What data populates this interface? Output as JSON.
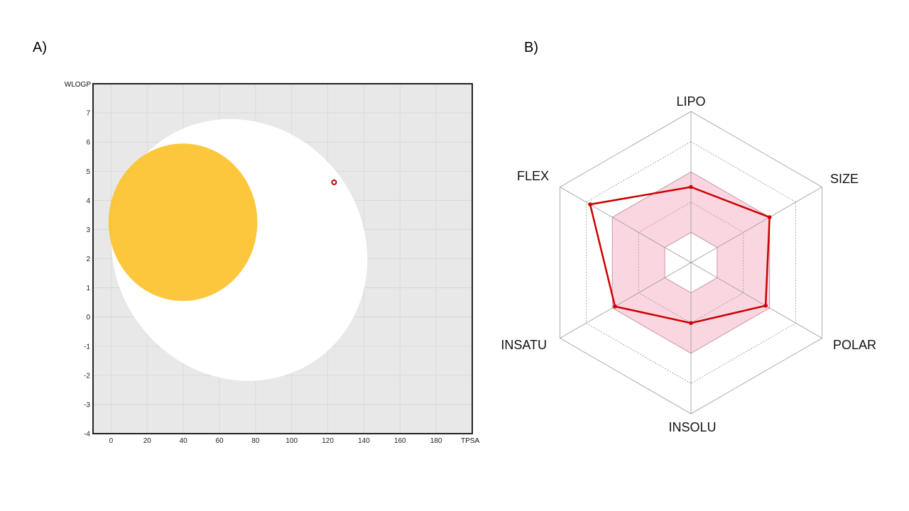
{
  "panels": {
    "a_label": "A)",
    "b_label": "B)"
  },
  "chart_data": [
    {
      "type": "scatter",
      "xlabel": "TPSA",
      "ylabel": "WLOGP",
      "xlim": [
        -10,
        200
      ],
      "ylim": [
        -4,
        8
      ],
      "grid": true,
      "xticks": [
        0,
        20,
        40,
        60,
        80,
        100,
        120,
        140,
        160,
        180
      ],
      "yticks": [
        -4,
        -3,
        -2,
        -1,
        0,
        1,
        2,
        3,
        4,
        5,
        6,
        7
      ],
      "regions": [
        {
          "shape": "ellipse",
          "color": "#ffffff",
          "cx": 71.0,
          "cy": 2.3,
          "rx": 69.0,
          "ry": 4.6,
          "rotation_deg": -36
        },
        {
          "shape": "ellipse",
          "color": "#fcc22c",
          "cx": 39.8,
          "cy": 3.25,
          "rx": 41.2,
          "ry": 2.7,
          "rotation_deg": 0
        }
      ],
      "points": [
        {
          "x": 123.5,
          "y": 4.62,
          "color": "#cc0000"
        }
      ],
      "colors": {
        "plot_bg": "#e8e8e8",
        "point": "#cc0000"
      }
    },
    {
      "type": "radar",
      "axes": [
        "LIPO",
        "SIZE",
        "POLAR",
        "INSOLU",
        "INSATU",
        "FLEX"
      ],
      "rmax": 1.0,
      "rings": [
        0.2,
        0.4,
        0.6,
        0.8,
        1.0
      ],
      "range_band": {
        "inner": [
          0.2,
          0.2,
          0.2,
          0.2,
          0.2,
          0.2
        ],
        "outer": [
          0.6,
          0.6,
          0.6,
          0.6,
          0.6,
          0.6
        ]
      },
      "values": [
        0.5,
        0.6,
        0.57,
        0.4,
        0.58,
        0.77
      ],
      "colors": {
        "line": "#cc0000",
        "band_fill": "#f9cfdc",
        "band_stroke": "#e89aaf",
        "grid": "#999999"
      }
    }
  ]
}
